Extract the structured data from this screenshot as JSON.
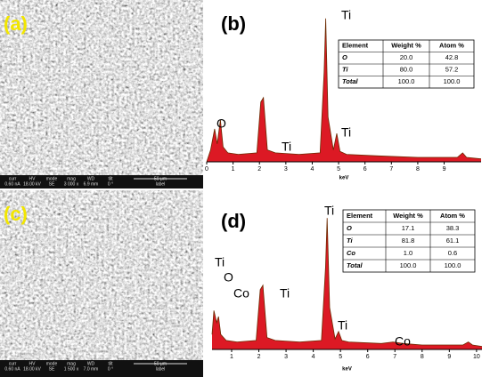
{
  "images": [
    {
      "label": "(a)",
      "info_headers": [
        "curr",
        "HV",
        "mode",
        "mag",
        "WD",
        "tilt"
      ],
      "info_values": [
        "0.60 nA",
        "18.00 kV",
        "SE",
        "3 000 x",
        "6.9 mm",
        "0 °"
      ],
      "scale": "50 μm",
      "scale_label": "label"
    },
    {
      "label": "(c)",
      "info_headers": [
        "curr",
        "HV",
        "mode",
        "mag",
        "WD",
        "tilt"
      ],
      "info_values": [
        "0.60 nA",
        "18.00 kV",
        "SE",
        "1 500 x",
        "7.0 mm",
        "0 °"
      ],
      "scale": "50 μm",
      "scale_label": "label"
    }
  ],
  "chart_data": [
    {
      "type": "area",
      "label": "(b)",
      "x_label": "keV",
      "color": "#d8000c",
      "xlim": [
        0,
        10.4
      ],
      "xticks": [
        0,
        1,
        2,
        3,
        4,
        5,
        6,
        7,
        8,
        9
      ],
      "ylim": [
        0,
        100
      ],
      "x": [
        0,
        0.15,
        0.3,
        0.4,
        0.52,
        0.62,
        0.8,
        1.2,
        1.9,
        2.05,
        2.15,
        2.3,
        2.6,
        3.5,
        4.3,
        4.45,
        4.51,
        4.6,
        4.8,
        4.93,
        5.05,
        5.3,
        6.5,
        8,
        9.5,
        9.7,
        9.85,
        10.4
      ],
      "values": [
        0,
        8,
        22,
        12,
        28,
        10,
        6,
        5,
        6,
        40,
        43,
        8,
        6,
        5,
        6,
        60,
        96,
        30,
        8,
        19,
        7,
        5,
        4,
        3,
        3,
        6,
        3,
        2
      ],
      "annotations": [
        "O",
        "Ti",
        "Ti",
        "Ti"
      ],
      "table": {
        "columns": [
          "Element",
          "Weight %",
          "Atom %"
        ],
        "rows": [
          [
            "O",
            "20.0",
            "42.8"
          ],
          [
            "Ti",
            "80.0",
            "57.2"
          ],
          [
            "Total",
            "100.0",
            "100.0"
          ]
        ]
      }
    },
    {
      "type": "area",
      "label": "(d)",
      "x_label": "keV",
      "color": "#d8000c",
      "xlim": [
        0.28,
        10.2
      ],
      "xticks": [
        1,
        2,
        3,
        4,
        5,
        6,
        7,
        8,
        9,
        10
      ],
      "ylim": [
        0,
        100
      ],
      "x": [
        0.28,
        0.35,
        0.45,
        0.52,
        0.6,
        0.8,
        1.2,
        1.9,
        2.05,
        2.15,
        2.3,
        2.6,
        3.5,
        4.3,
        4.45,
        4.51,
        4.6,
        4.8,
        4.93,
        5.05,
        5.3,
        6.5,
        6.93,
        7.3,
        8,
        9.5,
        9.7,
        9.85,
        10.2
      ],
      "values": [
        10,
        26,
        18,
        22,
        10,
        6,
        5,
        6,
        40,
        43,
        8,
        6,
        5,
        6,
        55,
        88,
        28,
        7,
        12,
        6,
        5,
        4,
        5,
        4,
        3,
        3,
        5,
        3,
        2
      ],
      "annotations": [
        "Ti",
        "O",
        "Co",
        "Ti",
        "Ti",
        "Ti",
        "Co"
      ],
      "table": {
        "columns": [
          "Element",
          "Weight %",
          "Atom %"
        ],
        "rows": [
          [
            "O",
            "17.1",
            "38.3"
          ],
          [
            "Ti",
            "81.8",
            "61.1"
          ],
          [
            "Co",
            "1.0",
            "0.6"
          ],
          [
            "Total",
            "100.0",
            "100.0"
          ]
        ]
      }
    }
  ]
}
